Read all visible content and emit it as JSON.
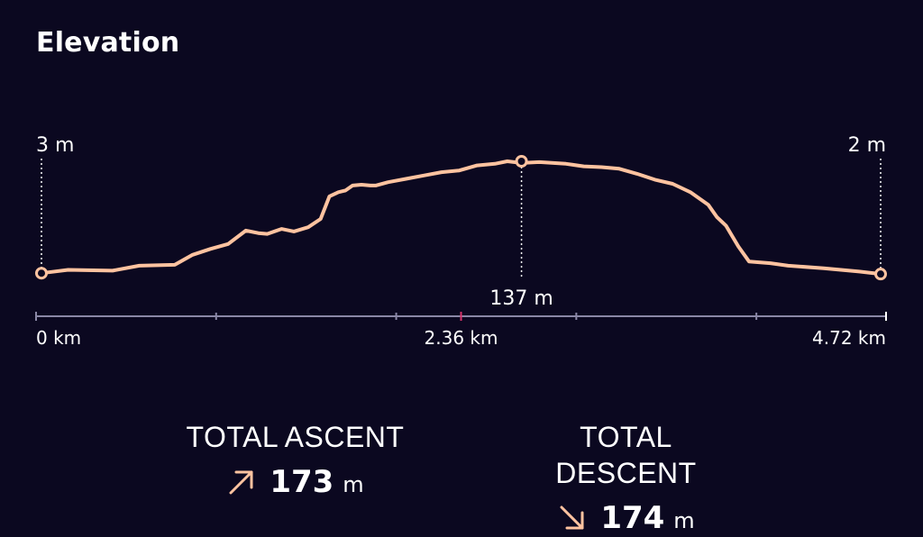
{
  "title": "Elevation",
  "colors": {
    "background": "#0b0820",
    "line": "#ffc3a0",
    "axis": "#8a87a6",
    "midMarker": "#d8336b",
    "text": "#ffffff"
  },
  "chart_data": {
    "type": "line",
    "title": "Elevation",
    "xlabel": "",
    "ylabel": "",
    "xlim": [
      0,
      4.72
    ],
    "ylim": [
      0,
      137
    ],
    "x_ticks": [
      0,
      2.36,
      4.72
    ],
    "x_tick_labels": [
      "0 km",
      "2.36 km",
      "4.72 km"
    ],
    "x_minor_ticks": [
      1.0,
      2.0,
      3.0,
      4.0
    ],
    "mid_marker": 2.36,
    "annotations": [
      {
        "label": "3 m",
        "x": 0,
        "y": 3
      },
      {
        "label": "137 m",
        "x": 2.7,
        "y": 137
      },
      {
        "label": "2 m",
        "x": 4.72,
        "y": 2
      }
    ],
    "series": [
      {
        "x": [
          0,
          0.15,
          0.4,
          0.55,
          0.75,
          0.85,
          0.95,
          1.05,
          1.15,
          1.22,
          1.27,
          1.35,
          1.42,
          1.5,
          1.57,
          1.62,
          1.67,
          1.71,
          1.75,
          1.8,
          1.85,
          1.88,
          1.95,
          2.05,
          2.15,
          2.25,
          2.35,
          2.45,
          2.55,
          2.62,
          2.7,
          2.8,
          2.95,
          3.05,
          3.15,
          3.25,
          3.35,
          3.45,
          3.55,
          3.65,
          3.75,
          3.8,
          3.85,
          3.92,
          3.98,
          4.1,
          4.2,
          4.4,
          4.6,
          4.72
        ],
        "y": [
          3,
          7,
          6,
          12,
          13,
          25,
          32,
          38,
          54,
          51,
          50,
          56,
          53,
          58,
          68,
          95,
          100,
          102,
          108,
          109,
          108,
          108,
          112,
          116,
          120,
          124,
          126,
          132,
          134,
          137,
          135,
          136,
          134,
          131,
          130,
          128,
          122,
          115,
          110,
          100,
          85,
          70,
          60,
          35,
          17,
          15,
          12,
          9,
          5,
          2
        ]
      }
    ]
  },
  "stats": {
    "ascent": {
      "label": "TOTAL ASCENT",
      "value": "173",
      "unit": "m",
      "icon": "arrow-up-right-icon"
    },
    "descent": {
      "label": "TOTAL DESCENT",
      "value": "174",
      "unit": "m",
      "icon": "arrow-down-right-icon"
    }
  }
}
